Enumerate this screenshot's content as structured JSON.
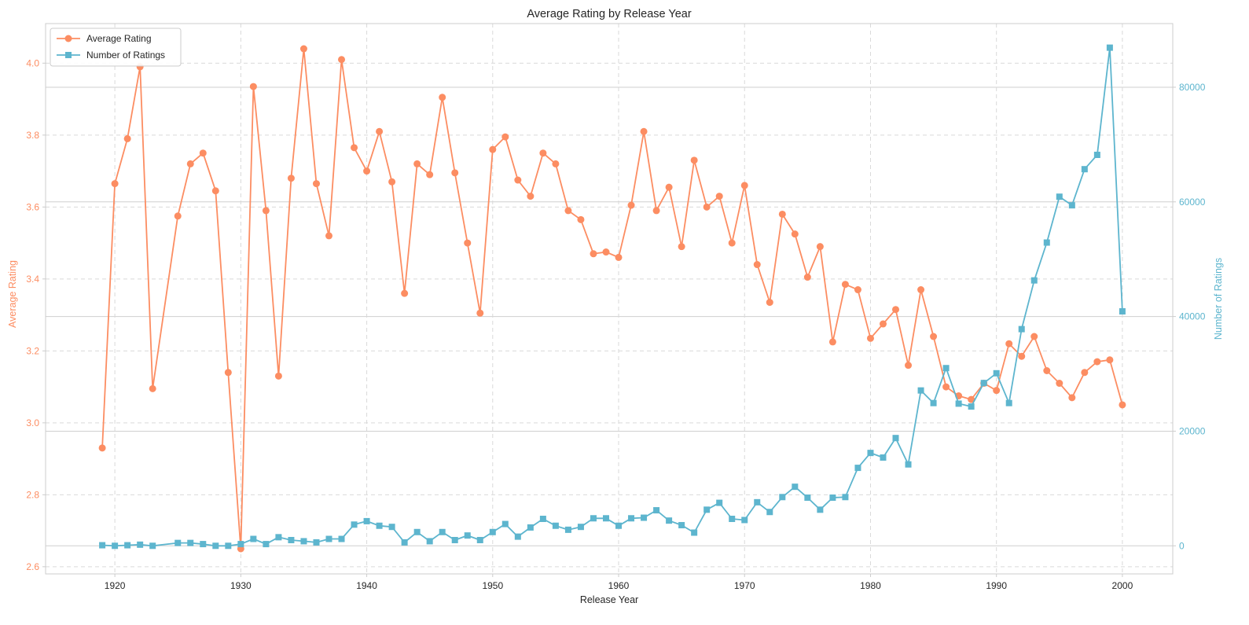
{
  "chart_data": {
    "type": "line",
    "title": "Average Rating by Release Year",
    "xlabel": "Release Year",
    "ylabel_left": "Average Rating",
    "ylabel_right": "Number of Ratings",
    "xlim": [
      1914.5,
      2004.0
    ],
    "ylim_left": [
      2.58,
      4.11
    ],
    "ylim_right": [
      -4900,
      91100
    ],
    "x_ticks": [
      1920,
      1930,
      1940,
      1950,
      1960,
      1970,
      1980,
      1990,
      2000
    ],
    "y_ticks_left": [
      "2.6",
      "2.8",
      "3.0",
      "3.2",
      "3.4",
      "3.6",
      "3.8",
      "4.0"
    ],
    "y_ticks_right": [
      "0",
      "20000",
      "40000",
      "60000",
      "80000"
    ],
    "legend_position": "upper-left",
    "grid": true,
    "series": [
      {
        "name": "Average Rating",
        "axis": "left",
        "marker": "circle",
        "color": "#FC8D62",
        "x": [
          1919,
          1920,
          1921,
          1922,
          1923,
          1925,
          1926,
          1927,
          1928,
          1929,
          1930,
          1931,
          1932,
          1933,
          1934,
          1935,
          1936,
          1937,
          1938,
          1939,
          1940,
          1941,
          1942,
          1943,
          1944,
          1945,
          1946,
          1947,
          1948,
          1949,
          1950,
          1951,
          1952,
          1953,
          1954,
          1955,
          1956,
          1957,
          1958,
          1959,
          1960,
          1961,
          1962,
          1963,
          1964,
          1965,
          1966,
          1967,
          1968,
          1969,
          1970,
          1971,
          1972,
          1973,
          1974,
          1975,
          1976,
          1977,
          1978,
          1979,
          1980,
          1981,
          1982,
          1983,
          1984,
          1985,
          1986,
          1987,
          1988,
          1989,
          1990,
          1991,
          1992,
          1993,
          1994,
          1995,
          1996,
          1997,
          1998,
          1999,
          2000
        ],
        "values": [
          2.93,
          3.665,
          3.79,
          3.99,
          3.095,
          3.575,
          3.72,
          3.75,
          3.645,
          3.14,
          2.65,
          3.935,
          3.59,
          3.13,
          3.68,
          4.04,
          3.665,
          3.52,
          4.01,
          3.765,
          3.7,
          3.81,
          3.67,
          3.36,
          3.72,
          3.69,
          3.905,
          3.695,
          3.5,
          3.305,
          3.76,
          3.795,
          3.675,
          3.63,
          3.75,
          3.72,
          3.59,
          3.565,
          3.47,
          3.475,
          3.46,
          3.605,
          3.81,
          3.59,
          3.655,
          3.49,
          3.73,
          3.6,
          3.63,
          3.5,
          3.66,
          3.44,
          3.335,
          3.58,
          3.525,
          3.405,
          3.49,
          3.225,
          3.385,
          3.37,
          3.235,
          3.275,
          3.315,
          3.16,
          3.37,
          3.24,
          3.1,
          3.075,
          3.065,
          3.11,
          3.09,
          3.22,
          3.185,
          3.24,
          3.145,
          3.11,
          3.07,
          3.14,
          3.17,
          3.175,
          3.05
        ]
      },
      {
        "name": "Number of Ratings",
        "axis": "right",
        "marker": "square",
        "color": "#5DB5CE",
        "x": [
          1919,
          1920,
          1921,
          1922,
          1923,
          1925,
          1926,
          1927,
          1928,
          1929,
          1930,
          1931,
          1932,
          1933,
          1934,
          1935,
          1936,
          1937,
          1938,
          1939,
          1940,
          1941,
          1942,
          1943,
          1944,
          1945,
          1946,
          1947,
          1948,
          1949,
          1950,
          1951,
          1952,
          1953,
          1954,
          1955,
          1956,
          1957,
          1958,
          1959,
          1960,
          1961,
          1962,
          1963,
          1964,
          1965,
          1966,
          1967,
          1968,
          1969,
          1970,
          1971,
          1972,
          1973,
          1974,
          1975,
          1976,
          1977,
          1978,
          1979,
          1980,
          1981,
          1982,
          1983,
          1984,
          1985,
          1986,
          1987,
          1988,
          1989,
          1990,
          1991,
          1992,
          1993,
          1994,
          1995,
          1996,
          1997,
          1998,
          1999,
          2000
        ],
        "values": [
          100,
          0,
          100,
          200,
          0,
          500,
          500,
          300,
          0,
          0,
          300,
          1200,
          300,
          1500,
          1000,
          800,
          600,
          1200,
          1200,
          3700,
          4300,
          3500,
          3300,
          600,
          2400,
          800,
          2400,
          1000,
          1800,
          1000,
          2400,
          3800,
          1600,
          3200,
          4700,
          3500,
          2800,
          3300,
          4800,
          4800,
          3500,
          4800,
          4900,
          6200,
          4400,
          3600,
          2300,
          6300,
          7500,
          4700,
          4500,
          7600,
          5900,
          8500,
          10300,
          8400,
          6300,
          8400,
          8500,
          13600,
          16200,
          15400,
          18800,
          14200,
          27100,
          24900,
          31000,
          24800,
          24300,
          28400,
          30100,
          24900,
          37800,
          46300,
          52900,
          60900,
          59400,
          65700,
          68200,
          86900,
          40900
        ]
      }
    ]
  },
  "colors": {
    "rating": "#FC8D62",
    "count": "#5DB5CE",
    "grid": "#d9d9d9",
    "right_grid": "#cfcfcf",
    "spine": "#cccccc",
    "text": "#262626"
  }
}
